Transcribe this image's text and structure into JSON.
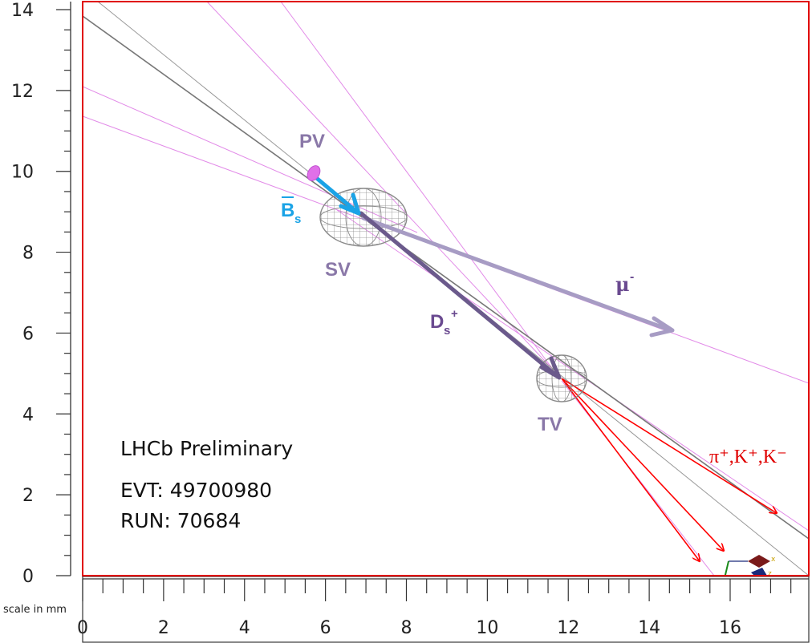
{
  "axes": {
    "x_ticks": [
      "0",
      "2",
      "4",
      "6",
      "8",
      "10",
      "12",
      "14",
      "16"
    ],
    "y_ticks": [
      "0",
      "2",
      "4",
      "6",
      "8",
      "10",
      "12",
      "14"
    ],
    "scale_label": "scale in mm"
  },
  "labels": {
    "pv": "PV",
    "bs": "B",
    "bs_sub": "s",
    "sv": "SV",
    "ds": "D",
    "ds_sub": "s",
    "ds_sup": "+",
    "mu": "μ",
    "mu_sup": "-",
    "tv": "TV",
    "pions": "π⁺,K⁺,K⁻"
  },
  "info": {
    "title": "LHCb Preliminary",
    "event": "EVT: 49700980",
    "run": "RUN: 70684"
  },
  "colors": {
    "frame": "#e00000",
    "bs_arrow": "#1aa3e6",
    "ds_arrow": "#6b5a8c",
    "mu_arrow": "#a79cc4",
    "track_pink": "#e28be8",
    "track_grey": "#777777",
    "daughter_red": "#ff0000",
    "label_purple": "#8a78a8",
    "label_dark_purple": "#6a4a90"
  }
}
